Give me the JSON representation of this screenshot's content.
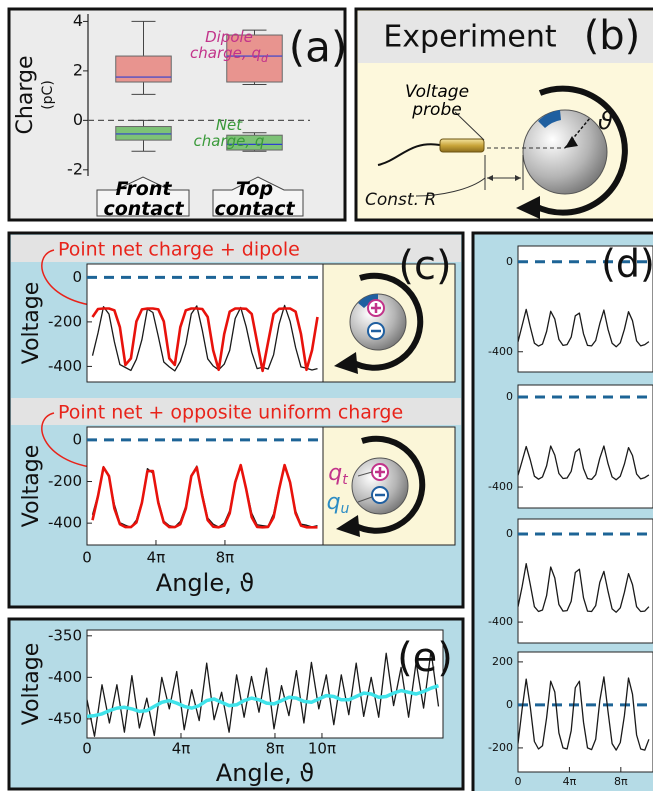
{
  "chart_data": [
    {
      "type": "box",
      "label": "(a)",
      "ylabel": "Charge",
      "ylabel_unit": "(pC)",
      "categories": [
        "Front contact",
        "Top contact"
      ],
      "series": [
        {
          "name": "Dipole charge, q",
          "subscript": "d",
          "color": "#e8948f",
          "text_color": "#c2338a",
          "boxes": [
            {
              "low": 1.05,
              "q1": 1.55,
              "median": 1.75,
              "q3": 2.6,
              "high": 4.0
            },
            {
              "low": 1.45,
              "q1": 1.55,
              "median": 2.6,
              "q3": 3.45,
              "high": 3.65
            }
          ]
        },
        {
          "name": "Net charge, q",
          "color": "#7dc276",
          "text_color": "#3a9a3a",
          "boxes": [
            {
              "low": -1.25,
              "q1": -0.8,
              "median": -0.55,
              "q3": -0.25,
              "high": 0
            },
            {
              "low": -1.25,
              "q1": -1.2,
              "median": -0.97,
              "q3": -0.6,
              "high": -0.5
            }
          ]
        }
      ],
      "median_color": "#2f3fd0",
      "hline": 0,
      "hline_color": "#555555",
      "ylim": [
        -2.25,
        4.3
      ],
      "yticks": [
        -2,
        0,
        2,
        4
      ]
    },
    {
      "type": "line",
      "label": "(c)",
      "title": "Point net charge + dipole",
      "title_color": "#e8231a",
      "ylabel": "Voltage",
      "x": [
        1,
        2,
        3,
        4,
        5,
        6,
        7,
        8,
        9,
        10,
        11,
        12,
        13,
        14,
        15,
        16,
        17,
        18,
        19,
        20,
        21,
        22,
        23,
        24,
        25,
        26,
        27,
        28,
        29,
        30,
        31,
        32,
        33,
        34,
        35,
        36,
        37,
        38,
        39,
        40,
        41,
        42
      ],
      "series": [
        {
          "color": "#1a1a1a",
          "values": [
            -352,
            -250,
            -132,
            -165,
            -290,
            -392,
            -405,
            -418,
            -368,
            -280,
            -142,
            -158,
            -265,
            -380,
            -402,
            -420,
            -378,
            -300,
            -164,
            -128,
            -238,
            -366,
            -398,
            -415,
            -390,
            -328,
            -185,
            -135,
            -222,
            -336,
            -410,
            -404,
            -412,
            -348,
            -210,
            -126,
            -198,
            -315,
            -402,
            -408,
            -416,
            -410
          ]
        },
        {
          "color": "#e8120c",
          "values": [
            -178,
            -142,
            -140,
            -140,
            -148,
            -224,
            -393,
            -364,
            -198,
            -144,
            -140,
            -140,
            -144,
            -198,
            -364,
            -393,
            -224,
            -148,
            -140,
            -140,
            -142,
            -178,
            -328,
            -415,
            -255,
            -154,
            -140,
            -140,
            -141,
            -164,
            -291,
            -420,
            -291,
            -164,
            -141,
            -140,
            -140,
            -154,
            -255,
            -415,
            -328,
            -178
          ]
        }
      ],
      "hline": 0,
      "hline_color": "#1d6496",
      "xlim": [
        0,
        43
      ],
      "ylim": [
        -470,
        60
      ],
      "yticks": [
        0,
        -200,
        -400
      ]
    },
    {
      "type": "line",
      "title": "Point net + opposite uniform charge",
      "title_color": "#e8231a",
      "ylabel": "Voltage",
      "xlabel": "Angle, ϑ",
      "x": [
        1,
        2,
        3,
        4,
        5,
        6,
        7,
        8,
        9,
        10,
        11,
        12,
        13,
        14,
        15,
        16,
        17,
        18,
        19,
        20,
        21,
        22,
        23,
        24,
        25,
        26,
        27,
        28,
        29,
        30,
        31,
        32,
        33,
        34,
        35,
        36,
        37,
        38,
        39,
        40,
        41,
        42
      ],
      "series": [
        {
          "color": "#1a1a1a",
          "values": [
            -360,
            -262,
            -128,
            -180,
            -310,
            -398,
            -410,
            -420,
            -385,
            -295,
            -138,
            -160,
            -290,
            -390,
            -412,
            -418,
            -392,
            -318,
            -170,
            -126,
            -256,
            -375,
            -405,
            -418,
            -400,
            -340,
            -195,
            -122,
            -230,
            -352,
            -408,
            -412,
            -415,
            -355,
            -228,
            -120,
            -205,
            -340,
            -405,
            -410,
            -418,
            -412
          ]
        },
        {
          "color": "#e8120c",
          "values": [
            -386,
            -270,
            -132,
            -174,
            -330,
            -405,
            -419,
            -419,
            -397,
            -302,
            -150,
            -150,
            -302,
            -397,
            -419,
            -419,
            -405,
            -330,
            -174,
            -132,
            -270,
            -386,
            -417,
            -420,
            -412,
            -353,
            -204,
            -121,
            -237,
            -372,
            -418,
            -420,
            -418,
            -372,
            -237,
            -121,
            -204,
            -353,
            -412,
            -420,
            -420,
            -420
          ]
        }
      ],
      "annotations": [
        {
          "text": "q",
          "subscript": "t",
          "color": "#c2338a"
        },
        {
          "text": "q",
          "subscript": "u",
          "color": "#2b8cc4"
        }
      ],
      "hline": 0,
      "hline_color": "#1d6496",
      "xlim": [
        0,
        43
      ],
      "ylim": [
        -505,
        62
      ],
      "yticks": [
        0,
        -200,
        -400
      ],
      "xticks": [
        0,
        {
          "value": 12.566,
          "label": "4π"
        },
        {
          "value": 25.133,
          "label": "8π"
        }
      ]
    },
    {
      "type": "line",
      "label": "(d)",
      "x": [
        0,
        1,
        2,
        3,
        4,
        5,
        6,
        7,
        8,
        9,
        10,
        11,
        12,
        13,
        14,
        15,
        16,
        17,
        18,
        19,
        20,
        21,
        22,
        23,
        24,
        25,
        26,
        27,
        28,
        29,
        30,
        31,
        32
      ],
      "series": [
        {
          "color": "#1a1a1a",
          "values": [
            -356,
            -284,
            -212,
            -290,
            -362,
            -375,
            -366,
            -310,
            -220,
            -255,
            -345,
            -372,
            -368,
            -335,
            -240,
            -228,
            -320,
            -372,
            -374,
            -350,
            -275,
            -215,
            -300,
            -362,
            -378,
            -360,
            -300,
            -222,
            -262,
            -352,
            -374,
            -368,
            -355
          ]
        }
      ],
      "hline": 0,
      "hline_color": "#1d6496",
      "xlim": [
        0,
        33
      ],
      "ylim": [
        -490,
        70
      ],
      "yticks": [
        0,
        -400
      ]
    },
    {
      "type": "line",
      "x": [
        0,
        1,
        2,
        3,
        4,
        5,
        6,
        7,
        8,
        9,
        10,
        11,
        12,
        13,
        14,
        15,
        16,
        17,
        18,
        19,
        20,
        21,
        22,
        23,
        24,
        25,
        26,
        27,
        28,
        29,
        30,
        31,
        32
      ],
      "series": [
        {
          "color": "#1a1a1a",
          "values": [
            -348,
            -285,
            -220,
            -280,
            -352,
            -365,
            -355,
            -306,
            -218,
            -258,
            -340,
            -362,
            -360,
            -330,
            -245,
            -230,
            -318,
            -362,
            -366,
            -345,
            -272,
            -218,
            -296,
            -355,
            -368,
            -352,
            -298,
            -225,
            -260,
            -342,
            -364,
            -358,
            -346
          ]
        }
      ],
      "hline": 0,
      "hline_color": "#1d6496",
      "xlim": [
        0,
        33
      ],
      "ylim": [
        -493,
        53
      ],
      "yticks": [
        0,
        -400
      ]
    },
    {
      "type": "line",
      "x": [
        0,
        1,
        2,
        3,
        4,
        5,
        6,
        7,
        8,
        9,
        10,
        11,
        12,
        13,
        14,
        15,
        16,
        17,
        18,
        19,
        20,
        21,
        22,
        23,
        24,
        25,
        26,
        27,
        28,
        29,
        30,
        31,
        32
      ],
      "series": [
        {
          "color": "#1a1a1a",
          "values": [
            -330,
            -240,
            -135,
            -230,
            -330,
            -352,
            -345,
            -280,
            -150,
            -200,
            -320,
            -350,
            -348,
            -305,
            -175,
            -160,
            -290,
            -350,
            -352,
            -325,
            -220,
            -170,
            -260,
            -340,
            -355,
            -335,
            -265,
            -180,
            -230,
            -330,
            -352,
            -350,
            -330
          ]
        }
      ],
      "hline": 0,
      "hline_color": "#1d6496",
      "xlim": [
        0,
        33
      ],
      "ylim": [
        -495,
        68
      ],
      "yticks": [
        0,
        -400
      ]
    },
    {
      "type": "line",
      "x": [
        0,
        1,
        2,
        3,
        4,
        5,
        6,
        7,
        8,
        9,
        10,
        11,
        12,
        13,
        14,
        15,
        16,
        17,
        18,
        19,
        20,
        21,
        22,
        23,
        24,
        25,
        26,
        27,
        28,
        29,
        30,
        31,
        32
      ],
      "series": [
        {
          "color": "#1a1a1a",
          "values": [
            -180,
            -20,
            120,
            -10,
            -170,
            -205,
            -190,
            -60,
            110,
            60,
            -130,
            -200,
            -205,
            -120,
            80,
            110,
            -80,
            -200,
            -208,
            -160,
            20,
            130,
            -30,
            -180,
            -210,
            -175,
            -50,
            125,
            50,
            -140,
            -205,
            -210,
            -160
          ]
        }
      ],
      "hline": 0,
      "hline_color": "#1d6496",
      "xlim": [
        0,
        33
      ],
      "ylim": [
        -312,
        246
      ],
      "yticks": [
        200,
        0,
        -200
      ],
      "xticks": [
        0,
        {
          "value": 12.566,
          "label": "4π"
        },
        {
          "value": 25.133,
          "label": "8π"
        }
      ]
    },
    {
      "type": "line",
      "label": "(e)",
      "ylabel": "Voltage",
      "xlabel": "Angle, ϑ",
      "x": [
        0,
        1,
        2,
        3,
        4,
        5,
        6,
        7,
        8,
        9,
        10,
        11,
        12,
        13,
        14,
        15,
        16,
        17,
        18,
        19,
        20,
        21,
        22,
        23,
        24,
        25,
        26,
        27,
        28,
        29,
        30,
        31,
        32,
        33,
        34,
        35,
        36,
        37,
        38,
        39,
        40,
        41,
        42,
        43,
        44,
        45,
        46,
        47
      ],
      "series": [
        {
          "color": "#1a1a1a",
          "values": [
            -427,
            -471,
            -409,
            -455,
            -409,
            -466,
            -398,
            -461,
            -425,
            -470,
            -400,
            -438,
            -393,
            -463,
            -415,
            -452,
            -383,
            -451,
            -418,
            -466,
            -397,
            -448,
            -399,
            -442,
            -389,
            -462,
            -410,
            -446,
            -392,
            -455,
            -382,
            -438,
            -397,
            -457,
            -397,
            -445,
            -383,
            -447,
            -400,
            -448,
            -371,
            -434,
            -388,
            -448,
            -382,
            -437,
            -368,
            -435
          ]
        },
        {
          "color": "#3fe3ea",
          "values": [
            -447,
            -446,
            -444,
            -440,
            -437,
            -436,
            -438,
            -441,
            -440,
            -435,
            -430,
            -428,
            -431,
            -435,
            -437,
            -434,
            -428,
            -426,
            -430,
            -434,
            -433,
            -428,
            -425,
            -427,
            -431,
            -432,
            -428,
            -424,
            -425,
            -429,
            -430,
            -426,
            -422,
            -423,
            -427,
            -427,
            -423,
            -419,
            -420,
            -424,
            -423,
            -419,
            -416,
            -418,
            -420,
            -417,
            -413,
            -410
          ]
        }
      ],
      "xlim": [
        0,
        47.6
      ],
      "ylim": [
        -473,
        -343
      ],
      "yticks": [
        -350,
        -400,
        -450
      ],
      "xticks": [
        0,
        {
          "value": 12.566,
          "label": "4π"
        },
        {
          "value": 25.133,
          "label": "8π"
        },
        {
          "value": 31.416,
          "label": "10π"
        }
      ]
    }
  ],
  "experiment": {
    "title": "Experiment",
    "label": "(b)",
    "probe": "Voltage probe",
    "resistor": "Const. R",
    "angle": "ϑ"
  }
}
